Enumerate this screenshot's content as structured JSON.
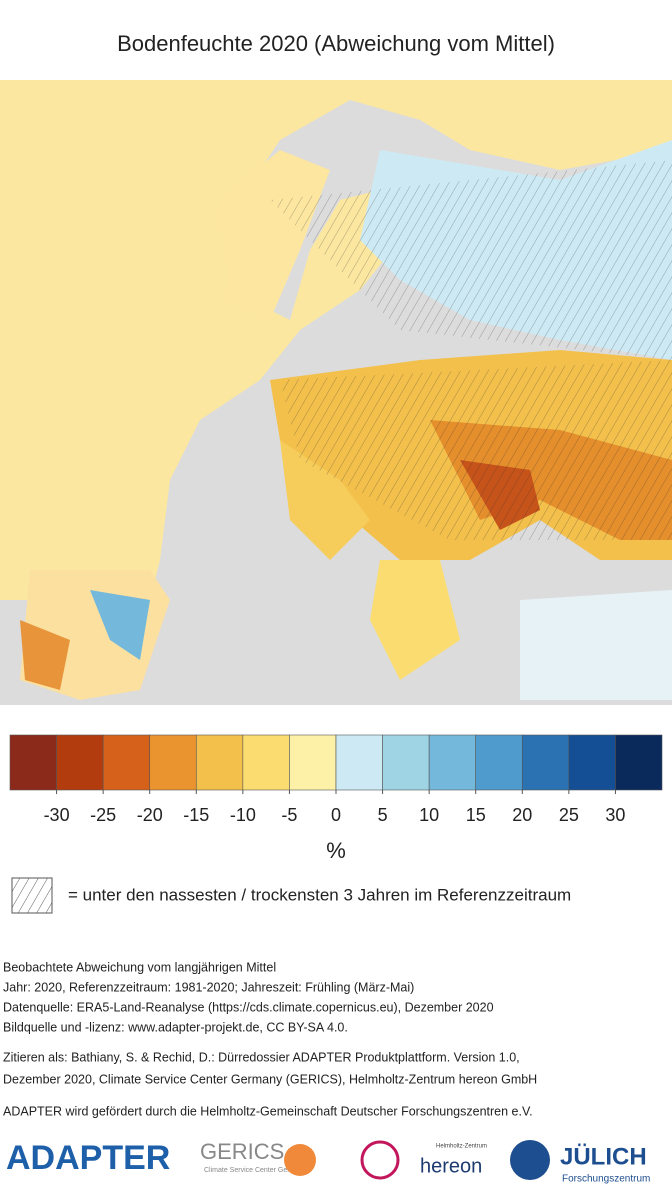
{
  "title": "Bodenfeuchte 2020 (Abweichung vom Mittel)",
  "colorbar": {
    "colors": [
      "#8b2a1a",
      "#b23c0e",
      "#d6611a",
      "#ea9430",
      "#f3c04c",
      "#fadc70",
      "#fdf1a8",
      "#cdeaf4",
      "#9fd4e4",
      "#74b9db",
      "#4f9bcd",
      "#2b72b3",
      "#144e94",
      "#0b2a5c"
    ],
    "lim": [
      -35,
      35
    ],
    "ticks": [
      -30,
      -25,
      -20,
      -15,
      -10,
      -5,
      0,
      5,
      10,
      15,
      20,
      25,
      30
    ],
    "unit": "%"
  },
  "hatch_legend": "= unter den nassesten / trockensten 3 Jahren im Referenzzeitraum",
  "footer": {
    "lines": [
      "Beobachtete Abweichung vom langjährigen Mittel",
      "Jahr: 2020, Referenzzeitraum: 1981-2020; Jahreszeit: Frühling (März-Mai)",
      "Datenquelle: ERA5-Land-Reanalyse (https://cds.climate.copernicus.eu), Dezember 2020",
      "Bildquelle und -lizenz: www.adapter-projekt.de, CC BY-SA 4.0."
    ],
    "citation": [
      "Zitieren als: Bathiany, S. & Rechid, D.: Dürredossier ADAPTER Produktplattform. Version 1.0,",
      "Dezember 2020, Climate Service Center Germany (GERICS), Helmholtz-Zentrum hereon GmbH"
    ],
    "funding": "ADAPTER wird gefördert durch die Helmholtz-Gemeinschaft Deutscher Forschungszentren e.V."
  },
  "logos": {
    "adapter": "ADAPTER",
    "gerics": "GERICS",
    "gerics_sub": "Climate Service Center Germany",
    "hereon_sub": "Helmholtz-Zentrum",
    "hereon": "hereon",
    "juelich": "JÜLICH",
    "juelich_sub": "Forschungszentrum"
  }
}
